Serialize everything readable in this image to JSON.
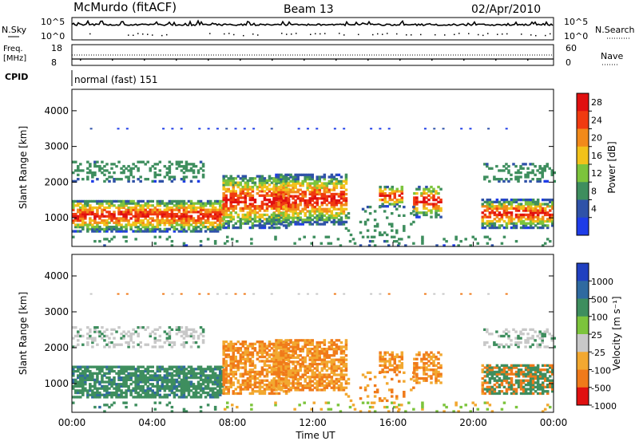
{
  "header": {
    "station": "McMurdo (fitACF)",
    "beam": "Beam 13",
    "date": "02/Apr/2010"
  },
  "top_panels": {
    "nsky_label": "N.Sky",
    "nsky_ticks": [
      "10^5",
      "10^0"
    ],
    "nsearch_label": "N.Search",
    "freq_label": "Freq.",
    "freq_unit": "[MHz]",
    "freq_ticks": [
      "18",
      "8"
    ],
    "nave_label": "Nave",
    "nave_ticks": [
      "60",
      "0"
    ],
    "cpid_label": "CPID",
    "cpid_value": "normal (fast) 151"
  },
  "chart_data": [
    {
      "type": "heatmap",
      "panel": "power",
      "ylabel": "Slant Range [km]",
      "yticks": [
        "1000",
        "2000",
        "3000",
        "4000"
      ],
      "ylim": [
        200,
        4600
      ],
      "colorbar_label": "Power [dB]",
      "colorbar_ticks": [
        "4",
        "8",
        "12",
        "16",
        "20",
        "24",
        "28"
      ],
      "colors": {
        "4": "#1e3ce8",
        "8": "#2f52a8",
        "12": "#3e8e5e",
        "16": "#7cc43c",
        "20": "#f2c21a",
        "24": "#f28a1a",
        "28": "#f03a10",
        "max": "#e01010"
      }
    },
    {
      "type": "heatmap",
      "panel": "velocity",
      "ylabel": "Slant Range [km]",
      "yticks": [
        "1000",
        "2000",
        "3000",
        "4000"
      ],
      "ylim": [
        200,
        4600
      ],
      "colorbar_label": "Velocity [m s⁻¹]",
      "colorbar_ticks": [
        "1000",
        "500",
        "100",
        "25",
        "-25",
        "-100",
        "-500",
        "-1000"
      ],
      "colors": {
        "1000": "#2040c0",
        "500": "#2f6aa0",
        "100": "#3e8e5e",
        "25": "#7cc43c",
        "-25": "#c8c8c8",
        "-100": "#f2a830",
        "-500": "#f07a1a",
        "-1000": "#e01010"
      }
    }
  ],
  "x_axis": {
    "ticks": [
      "00:00",
      "04:00",
      "08:00",
      "12:00",
      "16:00",
      "20:00",
      "00:00"
    ],
    "label": "Time UT"
  }
}
